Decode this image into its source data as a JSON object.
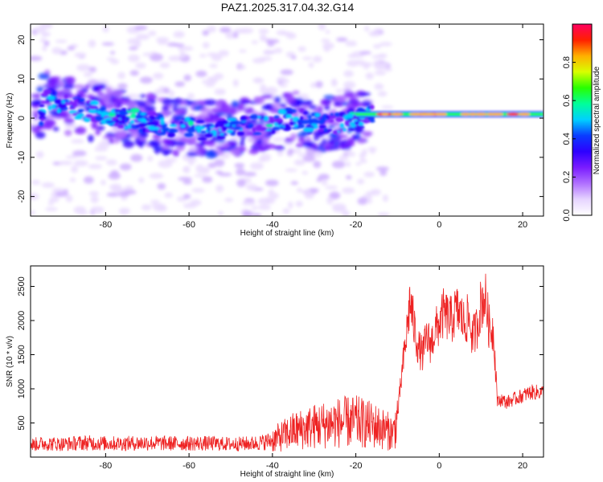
{
  "title": "PAZ1.2025.317.04.32.G14",
  "chart_data": [
    {
      "type": "heatmap",
      "title": "PAZ1.2025.317.04.32.G14",
      "xlabel": "Height of straight line (km)",
      "ylabel": "Frequency (Hz)",
      "xlim": [
        -98,
        25
      ],
      "ylim": [
        -25,
        24
      ],
      "xticks": [
        -80,
        -60,
        -40,
        -20,
        0,
        20
      ],
      "yticks": [
        -20,
        -10,
        0,
        10,
        20
      ],
      "colorbar": {
        "label": "Normalized spectral amplitude",
        "range": [
          0,
          1
        ],
        "ticks": [
          0.0,
          0.2,
          0.4,
          0.6,
          0.8
        ],
        "colormap": [
          "#ffffff",
          "#e6d4ff",
          "#b070ff",
          "#7a1cff",
          "#2d00ff",
          "#0a3cff",
          "#00d0ff",
          "#00ff9a",
          "#28ff00",
          "#d8ff00",
          "#ffb000",
          "#ff2000",
          "#ff0060"
        ]
      },
      "ridge": [
        {
          "x": -95,
          "y": 5
        },
        {
          "x": -85,
          "y": 2
        },
        {
          "x": -75,
          "y": 0
        },
        {
          "x": -65,
          "y": -2
        },
        {
          "x": -55,
          "y": -3
        },
        {
          "x": -45,
          "y": -2
        },
        {
          "x": -35,
          "y": 0
        },
        {
          "x": -28,
          "y": -2
        },
        {
          "x": -20,
          "y": 0
        },
        {
          "x": -10,
          "y": 1
        },
        {
          "x": 0,
          "y": 1
        },
        {
          "x": 10,
          "y": 1
        },
        {
          "x": 24,
          "y": 1
        }
      ]
    },
    {
      "type": "line",
      "xlabel": "Height of straight line (km)",
      "ylabel": "SNR (10 * v/v)",
      "xlim": [
        -98,
        25
      ],
      "ylim": [
        0,
        2800
      ],
      "xticks": [
        -80,
        -60,
        -40,
        -20,
        0,
        20
      ],
      "yticks": [
        500,
        1000,
        1500,
        2000,
        2500
      ],
      "line_color": "#ee2222",
      "series": [
        {
          "name": "SNR",
          "x": [
            -98,
            -95,
            -90,
            -85,
            -80,
            -75,
            -70,
            -65,
            -60,
            -55,
            -50,
            -45,
            -42,
            -40,
            -38,
            -35,
            -30,
            -25,
            -20,
            -15,
            -11,
            -10,
            -9,
            -8,
            -7,
            -6,
            -5,
            -4,
            -3,
            -2,
            -1,
            0,
            1,
            2,
            3,
            4,
            5,
            6,
            7,
            8,
            9,
            10,
            11,
            12,
            13,
            14,
            15,
            16,
            18,
            20,
            22,
            24,
            25
          ],
          "y": [
            180,
            200,
            190,
            210,
            200,
            200,
            210,
            200,
            200,
            200,
            190,
            200,
            220,
            250,
            300,
            380,
            450,
            500,
            520,
            450,
            350,
            600,
            1200,
            1700,
            2300,
            1900,
            1600,
            1500,
            1750,
            1650,
            1850,
            1950,
            2100,
            2050,
            2000,
            2150,
            2100,
            1950,
            2050,
            1750,
            1900,
            2250,
            2350,
            1900,
            1850,
            800,
            850,
            800,
            850,
            900,
            950,
            950,
            950
          ]
        }
      ]
    }
  ]
}
